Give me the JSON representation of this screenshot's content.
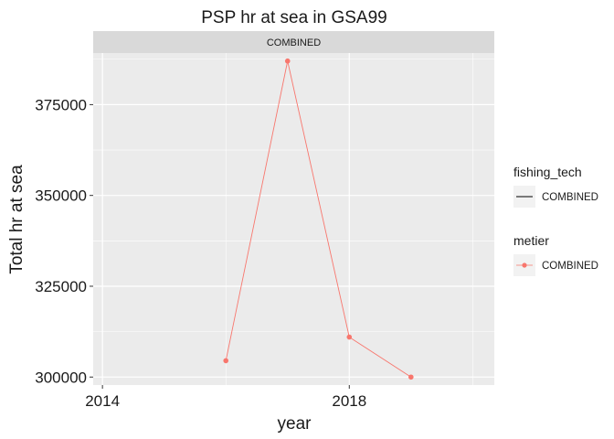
{
  "chart_data": {
    "type": "line",
    "title": "PSP hr at sea in GSA99",
    "facet_label": "COMBINED",
    "xlabel": "year",
    "ylabel": "Total hr at sea",
    "x_ticks": [
      2014,
      2018
    ],
    "y_ticks": [
      300000,
      325000,
      350000,
      375000
    ],
    "xlim": [
      2013.85,
      2020.35
    ],
    "ylim": [
      297800,
      389200
    ],
    "grid": true,
    "legend_position": "right",
    "series": [
      {
        "name": "COMBINED",
        "color": "#F8766D",
        "x": [
          2016,
          2017,
          2018,
          2019
        ],
        "values": [
          304500,
          387000,
          311000,
          300000
        ]
      }
    ],
    "legends": [
      {
        "title": "fishing_tech",
        "key": "line",
        "label": "COMBINED",
        "color": "#000000"
      },
      {
        "title": "metier",
        "key": "line-point",
        "label": "COMBINED",
        "color": "#F8766D"
      }
    ]
  }
}
